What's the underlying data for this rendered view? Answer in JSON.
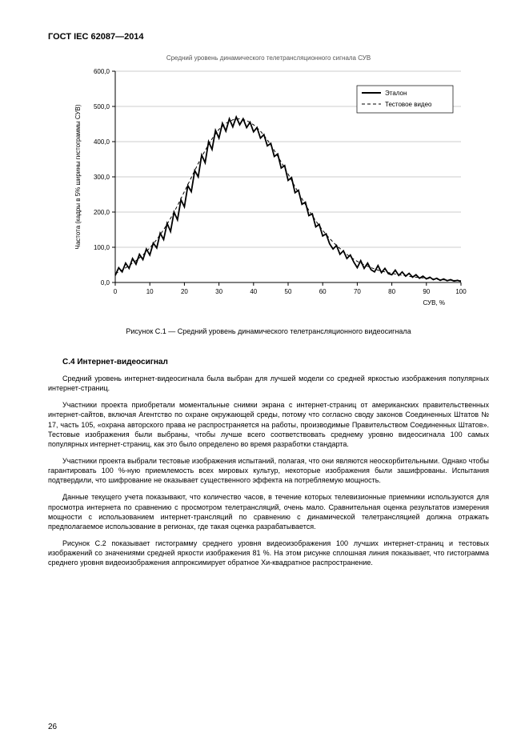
{
  "header": "ГОСТ IEC 62087—2014",
  "chart_title": "Средний уровень динамического телетрансляционного сигнала СУВ",
  "chart": {
    "type": "line",
    "background_color": "#ffffff",
    "grid_color": "#999999",
    "axis_color": "#000000",
    "text_color": "#000000",
    "title_fontsize": 8,
    "label_fontsize": 8,
    "tick_fontsize": 8,
    "ylabel": "Частота (кадры в 5% ширины гистограммы СУВ)",
    "xlabel": "СУВ, %",
    "xlim": [
      0,
      100
    ],
    "ylim": [
      0,
      600
    ],
    "xtick_step": 10,
    "ytick_step": 100,
    "xticks": [
      "0",
      "10",
      "20",
      "30",
      "40",
      "50",
      "60",
      "70",
      "80",
      "90",
      "100"
    ],
    "yticks": [
      "0,0",
      "100,0",
      "200,0",
      "300,0",
      "400,0",
      "500,0",
      "600,0"
    ],
    "legend": {
      "items": [
        {
          "label": "Эталон",
          "style": "solid",
          "color": "#000000",
          "width": 2
        },
        {
          "label": "Тестовое видео",
          "style": "dash",
          "color": "#000000",
          "width": 1
        }
      ],
      "position": "top-right",
      "border_color": "#000000",
      "background": "#ffffff"
    },
    "series": [
      {
        "name": "etalon",
        "color": "#000000",
        "line_width": 1.8,
        "dash": "none",
        "points": [
          [
            0,
            20
          ],
          [
            1,
            42
          ],
          [
            2,
            30
          ],
          [
            3,
            55
          ],
          [
            4,
            40
          ],
          [
            5,
            68
          ],
          [
            6,
            52
          ],
          [
            7,
            80
          ],
          [
            8,
            65
          ],
          [
            9,
            95
          ],
          [
            10,
            78
          ],
          [
            11,
            112
          ],
          [
            12,
            98
          ],
          [
            13,
            140
          ],
          [
            14,
            122
          ],
          [
            15,
            168
          ],
          [
            16,
            145
          ],
          [
            17,
            200
          ],
          [
            18,
            178
          ],
          [
            19,
            235
          ],
          [
            20,
            215
          ],
          [
            21,
            275
          ],
          [
            22,
            258
          ],
          [
            23,
            318
          ],
          [
            24,
            300
          ],
          [
            25,
            362
          ],
          [
            26,
            340
          ],
          [
            27,
            400
          ],
          [
            28,
            378
          ],
          [
            29,
            432
          ],
          [
            30,
            410
          ],
          [
            31,
            452
          ],
          [
            32,
            430
          ],
          [
            33,
            465
          ],
          [
            34,
            442
          ],
          [
            35,
            470
          ],
          [
            36,
            448
          ],
          [
            37,
            465
          ],
          [
            38,
            440
          ],
          [
            39,
            455
          ],
          [
            40,
            428
          ],
          [
            41,
            440
          ],
          [
            42,
            410
          ],
          [
            43,
            420
          ],
          [
            44,
            388
          ],
          [
            45,
            395
          ],
          [
            46,
            358
          ],
          [
            47,
            365
          ],
          [
            48,
            325
          ],
          [
            49,
            332
          ],
          [
            50,
            290
          ],
          [
            51,
            298
          ],
          [
            52,
            255
          ],
          [
            53,
            262
          ],
          [
            54,
            222
          ],
          [
            55,
            228
          ],
          [
            56,
            190
          ],
          [
            57,
            195
          ],
          [
            58,
            158
          ],
          [
            59,
            165
          ],
          [
            60,
            132
          ],
          [
            61,
            138
          ],
          [
            62,
            110
          ],
          [
            63,
            95
          ],
          [
            64,
            105
          ],
          [
            65,
            80
          ],
          [
            66,
            90
          ],
          [
            67,
            68
          ],
          [
            68,
            78
          ],
          [
            69,
            58
          ],
          [
            70,
            42
          ],
          [
            71,
            62
          ],
          [
            72,
            40
          ],
          [
            73,
            55
          ],
          [
            74,
            36
          ],
          [
            75,
            30
          ],
          [
            76,
            48
          ],
          [
            77,
            28
          ],
          [
            78,
            40
          ],
          [
            79,
            25
          ],
          [
            80,
            22
          ],
          [
            81,
            35
          ],
          [
            82,
            20
          ],
          [
            83,
            30
          ],
          [
            84,
            18
          ],
          [
            85,
            26
          ],
          [
            86,
            15
          ],
          [
            87,
            22
          ],
          [
            88,
            12
          ],
          [
            89,
            18
          ],
          [
            90,
            10
          ],
          [
            91,
            15
          ],
          [
            92,
            8
          ],
          [
            93,
            12
          ],
          [
            94,
            6
          ],
          [
            95,
            10
          ],
          [
            96,
            5
          ],
          [
            97,
            8
          ],
          [
            98,
            4
          ],
          [
            99,
            6
          ],
          [
            100,
            3
          ]
        ]
      },
      {
        "name": "test_video",
        "color": "#000000",
        "line_width": 1,
        "dash": "4,3",
        "points": [
          [
            0,
            25
          ],
          [
            2,
            35
          ],
          [
            4,
            48
          ],
          [
            6,
            62
          ],
          [
            8,
            78
          ],
          [
            10,
            98
          ],
          [
            12,
            122
          ],
          [
            14,
            150
          ],
          [
            16,
            182
          ],
          [
            18,
            218
          ],
          [
            20,
            258
          ],
          [
            22,
            298
          ],
          [
            24,
            338
          ],
          [
            26,
            375
          ],
          [
            28,
            408
          ],
          [
            30,
            435
          ],
          [
            32,
            452
          ],
          [
            34,
            462
          ],
          [
            36,
            465
          ],
          [
            38,
            460
          ],
          [
            40,
            448
          ],
          [
            42,
            430
          ],
          [
            44,
            405
          ],
          [
            46,
            375
          ],
          [
            48,
            342
          ],
          [
            50,
            308
          ],
          [
            52,
            272
          ],
          [
            54,
            238
          ],
          [
            56,
            205
          ],
          [
            58,
            175
          ],
          [
            60,
            148
          ],
          [
            62,
            125
          ],
          [
            64,
            105
          ],
          [
            66,
            88
          ],
          [
            68,
            72
          ],
          [
            70,
            60
          ],
          [
            72,
            50
          ],
          [
            74,
            42
          ],
          [
            76,
            35
          ],
          [
            78,
            30
          ],
          [
            80,
            26
          ],
          [
            82,
            22
          ],
          [
            84,
            19
          ],
          [
            86,
            16
          ],
          [
            88,
            14
          ],
          [
            90,
            12
          ],
          [
            92,
            10
          ],
          [
            94,
            8
          ],
          [
            96,
            7
          ],
          [
            98,
            6
          ],
          [
            100,
            5
          ]
        ]
      }
    ]
  },
  "caption": "Рисунок С.1 — Средний уровень динамического телетрансляционного видеосигнала",
  "section_title": "С.4  Интернет-видеосигнал",
  "para1": "Средний уровень интернет-видеосигнала была выбран для лучшей модели со средней яркостью изображения популярных интернет-страниц.",
  "para2": "Участники проекта приобретали моментальные снимки экрана с интернет-страниц от американских правительственных интернет-сайтов, включая Агентство по охране окружающей среды, потому что согласно своду законов Соединенных Штатов № 17, часть 105, «охрана авторского права не распространяется на работы, производимые Правительством Соединенных Штатов». Тестовые изображения были выбраны, чтобы лучше всего соответствовать среднему уровню видеосигнала 100 самых популярных интернет-страниц, как это было определено во время разработки стандарта.",
  "para3": "Участники проекта выбрали тестовые изображения испытаний, полагая, что они являются неоскорбительными. Однако чтобы гарантировать 100 %-ную приемлемость всех мировых культур, некоторые изображения были зашифрованы. Испытания подтвердили, что шифрование не оказывает существенного эффекта на потребляемую мощность.",
  "para4": "Данные текущего учета показывают, что количество часов, в течение которых телевизионные приемники используются для просмотра интернета по сравнению с просмотром телетрансляций, очень мало. Сравнительная оценка результатов измерения мощности с использованием интернет-трансляций по сравнению с динамической телетрансляцией должна отражать предполагаемое использование в регионах, где такая оценка разрабатывается.",
  "para5": "Рисунок С.2 показывает гистограмму среднего уровня видеоизображения 100 лучших интернет-страниц и тестовых изображений со значениями средней яркости изображения 81 %. На этом рисунке сплошная линия показывает, что гистограмма среднего уровня видеоизображения аппроксимирует обратное Хи-квадратное распространение.",
  "page_number": "26"
}
